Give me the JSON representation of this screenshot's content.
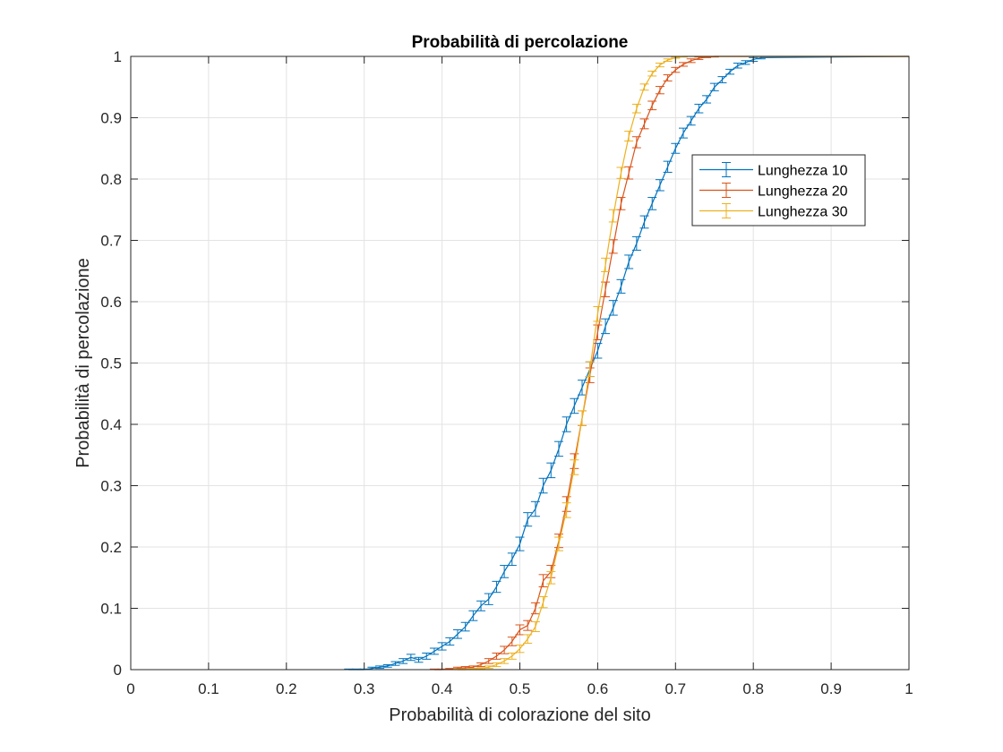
{
  "chart_data": {
    "type": "line",
    "title": "Probabilità di percolazione",
    "xlabel": "Probabilità di colorazione del sito",
    "ylabel": "Probabilità di percolazione",
    "xlim": [
      0,
      1
    ],
    "ylim": [
      0,
      1
    ],
    "xticks": [
      "0",
      "0.1",
      "0.2",
      "0.3",
      "0.4",
      "0.5",
      "0.6",
      "0.7",
      "0.8",
      "0.9",
      "1"
    ],
    "yticks": [
      "0",
      "0.1",
      "0.2",
      "0.3",
      "0.4",
      "0.5",
      "0.6",
      "0.7",
      "0.8",
      "0.9",
      "1"
    ],
    "grid": true,
    "legend_position": "top-right",
    "error_bars": true,
    "series": [
      {
        "name": "Lunghezza 10",
        "color": "#0072BD",
        "points": [
          [
            0.28,
            0.0,
            0.001
          ],
          [
            0.29,
            0.0,
            0.001
          ],
          [
            0.3,
            0.0,
            0.001
          ],
          [
            0.31,
            0.002,
            0.002
          ],
          [
            0.32,
            0.004,
            0.002
          ],
          [
            0.33,
            0.006,
            0.002
          ],
          [
            0.34,
            0.01,
            0.003
          ],
          [
            0.35,
            0.014,
            0.004
          ],
          [
            0.36,
            0.02,
            0.005
          ],
          [
            0.37,
            0.016,
            0.004
          ],
          [
            0.38,
            0.022,
            0.005
          ],
          [
            0.39,
            0.03,
            0.005
          ],
          [
            0.4,
            0.038,
            0.006
          ],
          [
            0.41,
            0.046,
            0.006
          ],
          [
            0.42,
            0.058,
            0.007
          ],
          [
            0.43,
            0.07,
            0.007
          ],
          [
            0.44,
            0.088,
            0.008
          ],
          [
            0.45,
            0.104,
            0.008
          ],
          [
            0.46,
            0.115,
            0.009
          ],
          [
            0.47,
            0.135,
            0.009
          ],
          [
            0.48,
            0.16,
            0.01
          ],
          [
            0.49,
            0.18,
            0.01
          ],
          [
            0.5,
            0.205,
            0.011
          ],
          [
            0.51,
            0.245,
            0.011
          ],
          [
            0.52,
            0.262,
            0.012
          ],
          [
            0.53,
            0.3,
            0.012
          ],
          [
            0.54,
            0.325,
            0.012
          ],
          [
            0.55,
            0.36,
            0.012
          ],
          [
            0.56,
            0.4,
            0.012
          ],
          [
            0.57,
            0.43,
            0.012
          ],
          [
            0.58,
            0.46,
            0.012
          ],
          [
            0.59,
            0.49,
            0.012
          ],
          [
            0.6,
            0.52,
            0.012
          ],
          [
            0.61,
            0.56,
            0.012
          ],
          [
            0.62,
            0.59,
            0.012
          ],
          [
            0.63,
            0.625,
            0.011
          ],
          [
            0.64,
            0.665,
            0.011
          ],
          [
            0.65,
            0.695,
            0.011
          ],
          [
            0.66,
            0.73,
            0.01
          ],
          [
            0.67,
            0.76,
            0.01
          ],
          [
            0.68,
            0.79,
            0.009
          ],
          [
            0.69,
            0.82,
            0.009
          ],
          [
            0.7,
            0.85,
            0.008
          ],
          [
            0.71,
            0.875,
            0.008
          ],
          [
            0.72,
            0.895,
            0.007
          ],
          [
            0.73,
            0.915,
            0.007
          ],
          [
            0.74,
            0.93,
            0.006
          ],
          [
            0.75,
            0.95,
            0.006
          ],
          [
            0.76,
            0.962,
            0.005
          ],
          [
            0.77,
            0.975,
            0.004
          ],
          [
            0.78,
            0.985,
            0.004
          ],
          [
            0.79,
            0.99,
            0.003
          ],
          [
            0.8,
            0.995,
            0.003
          ],
          [
            0.81,
            0.998,
            0.002
          ]
        ]
      },
      {
        "name": "Lunghezza 20",
        "color": "#D95319",
        "points": [
          [
            0.39,
            0.0,
            0.001
          ],
          [
            0.4,
            0.0,
            0.001
          ],
          [
            0.41,
            0.001,
            0.001
          ],
          [
            0.42,
            0.002,
            0.002
          ],
          [
            0.43,
            0.003,
            0.002
          ],
          [
            0.44,
            0.004,
            0.002
          ],
          [
            0.45,
            0.008,
            0.003
          ],
          [
            0.46,
            0.014,
            0.004
          ],
          [
            0.47,
            0.022,
            0.005
          ],
          [
            0.48,
            0.032,
            0.006
          ],
          [
            0.49,
            0.046,
            0.007
          ],
          [
            0.5,
            0.065,
            0.008
          ],
          [
            0.51,
            0.072,
            0.008
          ],
          [
            0.52,
            0.1,
            0.009
          ],
          [
            0.53,
            0.145,
            0.01
          ],
          [
            0.54,
            0.16,
            0.01
          ],
          [
            0.55,
            0.21,
            0.011
          ],
          [
            0.56,
            0.27,
            0.012
          ],
          [
            0.57,
            0.34,
            0.012
          ],
          [
            0.58,
            0.41,
            0.012
          ],
          [
            0.59,
            0.48,
            0.012
          ],
          [
            0.6,
            0.55,
            0.012
          ],
          [
            0.61,
            0.62,
            0.012
          ],
          [
            0.62,
            0.69,
            0.011
          ],
          [
            0.63,
            0.76,
            0.01
          ],
          [
            0.64,
            0.81,
            0.01
          ],
          [
            0.65,
            0.86,
            0.009
          ],
          [
            0.66,
            0.89,
            0.008
          ],
          [
            0.67,
            0.92,
            0.007
          ],
          [
            0.68,
            0.945,
            0.006
          ],
          [
            0.69,
            0.965,
            0.005
          ],
          [
            0.7,
            0.978,
            0.004
          ],
          [
            0.71,
            0.987,
            0.003
          ],
          [
            0.72,
            0.993,
            0.003
          ],
          [
            0.73,
            0.997,
            0.002
          ],
          [
            0.74,
            0.999,
            0.001
          ],
          [
            0.75,
            1.0,
            0.001
          ]
        ]
      },
      {
        "name": "Lunghezza 30",
        "color": "#EDB120",
        "points": [
          [
            0.42,
            0.0,
            0.001
          ],
          [
            0.43,
            0.0,
            0.001
          ],
          [
            0.44,
            0.001,
            0.001
          ],
          [
            0.45,
            0.002,
            0.001
          ],
          [
            0.46,
            0.004,
            0.002
          ],
          [
            0.47,
            0.008,
            0.003
          ],
          [
            0.48,
            0.014,
            0.004
          ],
          [
            0.49,
            0.022,
            0.005
          ],
          [
            0.5,
            0.034,
            0.006
          ],
          [
            0.51,
            0.05,
            0.007
          ],
          [
            0.52,
            0.07,
            0.008
          ],
          [
            0.53,
            0.11,
            0.009
          ],
          [
            0.54,
            0.15,
            0.01
          ],
          [
            0.55,
            0.205,
            0.011
          ],
          [
            0.56,
            0.26,
            0.012
          ],
          [
            0.57,
            0.33,
            0.012
          ],
          [
            0.58,
            0.41,
            0.012
          ],
          [
            0.59,
            0.49,
            0.012
          ],
          [
            0.6,
            0.58,
            0.012
          ],
          [
            0.61,
            0.66,
            0.011
          ],
          [
            0.62,
            0.74,
            0.01
          ],
          [
            0.63,
            0.81,
            0.009
          ],
          [
            0.64,
            0.87,
            0.008
          ],
          [
            0.65,
            0.915,
            0.007
          ],
          [
            0.66,
            0.95,
            0.005
          ],
          [
            0.67,
            0.972,
            0.004
          ],
          [
            0.68,
            0.986,
            0.003
          ],
          [
            0.69,
            0.994,
            0.002
          ],
          [
            0.7,
            0.998,
            0.001
          ],
          [
            0.71,
            1.0,
            0.001
          ]
        ]
      }
    ]
  }
}
